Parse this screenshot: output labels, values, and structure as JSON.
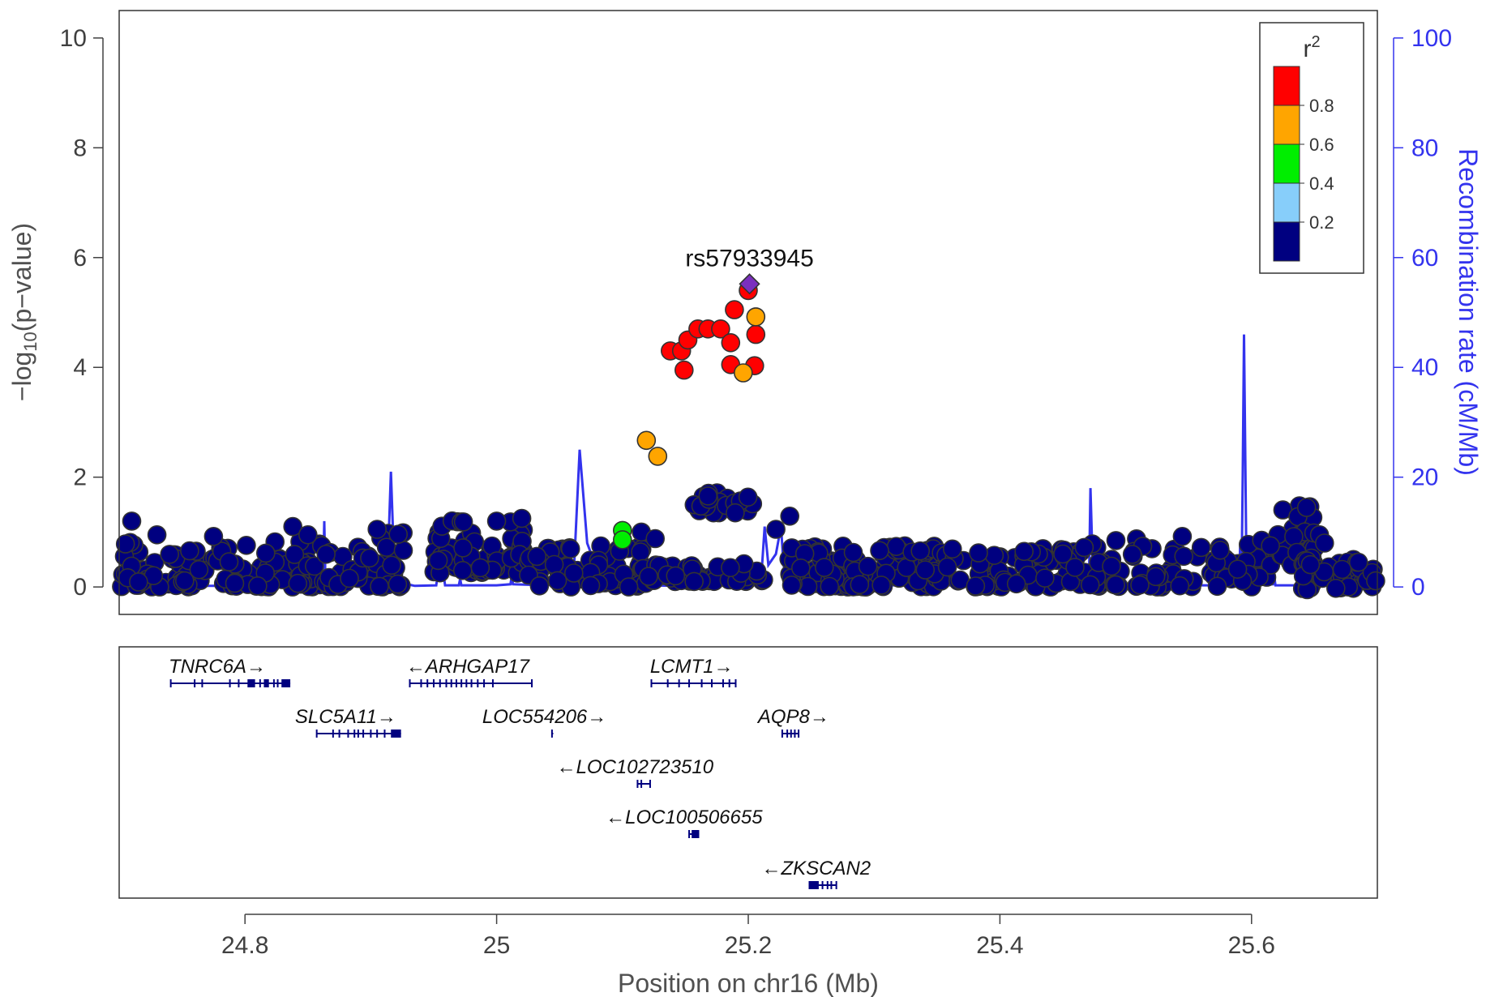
{
  "chart_data": {
    "type": "scatter",
    "title": "",
    "xlabel": "Position on chr16 (Mb)",
    "ylabel_left": "−log10(p−value)",
    "ylabel_left_parts": [
      "−log",
      "10",
      "(p−value)"
    ],
    "ylabel_right": "Recombination rate (cM/Mb)",
    "xlim": [
      24.7,
      25.7
    ],
    "xticks": [
      24.8,
      25.0,
      25.2,
      25.4,
      25.6
    ],
    "xtick_labels": [
      "24.8",
      "25",
      "25.2",
      "25.4",
      "25.6"
    ],
    "ylim_left": [
      -0.5,
      10.5
    ],
    "yticks_left": [
      0,
      2,
      4,
      6,
      8,
      10
    ],
    "ytick_labels_left": [
      "0",
      "2",
      "4",
      "6",
      "8",
      "10"
    ],
    "ylim_right": [
      -5,
      105
    ],
    "yticks_right": [
      0,
      20,
      40,
      60,
      80,
      100
    ],
    "ytick_labels_right": [
      "0",
      "20",
      "40",
      "60",
      "80",
      "100"
    ],
    "lead_snp": {
      "label": "rs57933945",
      "x": 25.201,
      "y": 5.52,
      "color": "#7b2fbe"
    },
    "legend": {
      "title": "r²",
      "title_parts": [
        "r",
        "2"
      ],
      "placement": "top-right",
      "bins": [
        {
          "color": "#ff0000"
        },
        {
          "color": "#ffa500"
        },
        {
          "color": "#00ee00"
        },
        {
          "color": "#87cefa"
        },
        {
          "color": "#000080"
        }
      ],
      "labels": [
        "0.8",
        "0.6",
        "0.4",
        "0.2"
      ]
    },
    "colors": {
      "red": "#ff0000",
      "orange": "#ffa500",
      "green": "#00ee00",
      "lightblue": "#87cefa",
      "navy": "#000080",
      "recomb_line": "#3333ee",
      "point_outline": "#333333",
      "gene": "#00007f"
    },
    "highlighted_points": [
      {
        "x": 25.138,
        "y": 4.3,
        "r2": "red"
      },
      {
        "x": 25.147,
        "y": 4.3,
        "r2": "red"
      },
      {
        "x": 25.149,
        "y": 3.95,
        "r2": "red"
      },
      {
        "x": 25.152,
        "y": 4.5,
        "r2": "red"
      },
      {
        "x": 25.16,
        "y": 4.7,
        "r2": "red"
      },
      {
        "x": 25.168,
        "y": 4.7,
        "r2": "red"
      },
      {
        "x": 25.178,
        "y": 4.7,
        "r2": "red"
      },
      {
        "x": 25.186,
        "y": 4.45,
        "r2": "red"
      },
      {
        "x": 25.186,
        "y": 4.05,
        "r2": "red"
      },
      {
        "x": 25.189,
        "y": 5.05,
        "r2": "red"
      },
      {
        "x": 25.2,
        "y": 5.4,
        "r2": "red"
      },
      {
        "x": 25.206,
        "y": 4.6,
        "r2": "red"
      },
      {
        "x": 25.205,
        "y": 4.03,
        "r2": "red"
      },
      {
        "x": 25.206,
        "y": 4.92,
        "r2": "orange"
      },
      {
        "x": 25.196,
        "y": 3.9,
        "r2": "orange"
      },
      {
        "x": 25.119,
        "y": 2.67,
        "r2": "orange"
      },
      {
        "x": 25.128,
        "y": 2.38,
        "r2": "orange"
      },
      {
        "x": 25.1,
        "y": 1.03,
        "r2": "green"
      },
      {
        "x": 25.1,
        "y": 0.86,
        "r2": "green"
      }
    ],
    "background_clusters": [
      {
        "x": [
          24.7,
          24.862
        ],
        "y": [
          0.0,
          0.85
        ],
        "n": 130
      },
      {
        "x": [
          24.862,
          24.93
        ],
        "y": [
          0.0,
          1.0
        ],
        "n": 45
      },
      {
        "x": [
          24.95,
          25.022
        ],
        "y": [
          0.25,
          1.25
        ],
        "n": 75
      },
      {
        "x": [
          25.025,
          25.12
        ],
        "y": [
          0.0,
          0.8
        ],
        "n": 75
      },
      {
        "x": [
          25.12,
          25.215
        ],
        "y": [
          0.1,
          0.45
        ],
        "n": 55
      },
      {
        "x": [
          25.15,
          25.205
        ],
        "y": [
          1.35,
          1.75
        ],
        "n": 24
      },
      {
        "x": [
          25.232,
          25.355
        ],
        "y": [
          0.0,
          0.75
        ],
        "n": 140
      },
      {
        "x": [
          25.355,
          25.47
        ],
        "y": [
          0.0,
          0.7
        ],
        "n": 80
      },
      {
        "x": [
          25.47,
          25.62
        ],
        "y": [
          0.0,
          0.9
        ],
        "n": 80
      },
      {
        "x": [
          25.62,
          25.65
        ],
        "y": [
          0.4,
          1.55
        ],
        "n": 30
      },
      {
        "x": [
          25.64,
          25.7
        ],
        "y": [
          -0.05,
          0.5
        ],
        "n": 40
      }
    ],
    "background_extra": [
      {
        "x": 24.71,
        "y": 1.2
      },
      {
        "x": 24.73,
        "y": 0.95
      },
      {
        "x": 24.775,
        "y": 0.92
      },
      {
        "x": 24.838,
        "y": 1.1
      },
      {
        "x": 24.85,
        "y": 0.95
      },
      {
        "x": 24.905,
        "y": 1.05
      },
      {
        "x": 25.0,
        "y": 1.2
      },
      {
        "x": 25.02,
        "y": 1.25
      },
      {
        "x": 25.115,
        "y": 1.0
      },
      {
        "x": 25.126,
        "y": 0.88
      },
      {
        "x": 25.222,
        "y": 1.05
      },
      {
        "x": 25.233,
        "y": 1.29
      },
      {
        "x": 24.973,
        "y": 0.3
      },
      {
        "x": 24.987,
        "y": 0.35
      },
      {
        "x": 25.034,
        "y": 0.02
      },
      {
        "x": 25.105,
        "y": 0.0
      },
      {
        "x": 25.45,
        "y": 0.6
      },
      {
        "x": 25.467,
        "y": 0.72
      },
      {
        "x": 25.545,
        "y": 0.92
      },
      {
        "x": 25.56,
        "y": 0.72
      },
      {
        "x": 25.575,
        "y": 0.67
      },
      {
        "x": 25.654,
        "y": 0.95
      },
      {
        "x": 25.658,
        "y": 0.8
      },
      {
        "x": 25.608,
        "y": 0.85
      },
      {
        "x": 25.615,
        "y": 0.75
      },
      {
        "x": 25.685,
        "y": 0.45
      },
      {
        "x": 25.672,
        "y": 0.32
      }
    ],
    "recombination_rate": [
      [
        24.7,
        0.2
      ],
      [
        24.86,
        0.2
      ],
      [
        24.862,
        0.5
      ],
      [
        24.863,
        12
      ],
      [
        24.864,
        0.5
      ],
      [
        24.9,
        0.3
      ],
      [
        24.913,
        1
      ],
      [
        24.916,
        21
      ],
      [
        24.919,
        1
      ],
      [
        24.935,
        0.2
      ],
      [
        24.952,
        0.3
      ],
      [
        24.953,
        2
      ],
      [
        24.958,
        2
      ],
      [
        24.959,
        0.3
      ],
      [
        24.97,
        0.3
      ],
      [
        24.971,
        1.5
      ],
      [
        24.972,
        0.3
      ],
      [
        25.0,
        0.3
      ],
      [
        25.011,
        0.5
      ],
      [
        25.012,
        2
      ],
      [
        25.013,
        0.5
      ],
      [
        25.04,
        0.3
      ],
      [
        25.061,
        1
      ],
      [
        25.066,
        25
      ],
      [
        25.072,
        8
      ],
      [
        25.08,
        3
      ],
      [
        25.09,
        2
      ],
      [
        25.1,
        1.5
      ],
      [
        25.11,
        0.3
      ],
      [
        25.15,
        0.2
      ],
      [
        25.21,
        0.5
      ],
      [
        25.213,
        11
      ],
      [
        25.216,
        4
      ],
      [
        25.222,
        6
      ],
      [
        25.226,
        11
      ],
      [
        25.228,
        4
      ],
      [
        25.232,
        0.3
      ],
      [
        25.47,
        0.3
      ],
      [
        25.471,
        4
      ],
      [
        25.472,
        18
      ],
      [
        25.474,
        2
      ],
      [
        25.476,
        0.3
      ],
      [
        25.59,
        0.3
      ],
      [
        25.591,
        8
      ],
      [
        25.592,
        0.5
      ],
      [
        25.593,
        20
      ],
      [
        25.594,
        46
      ],
      [
        25.596,
        2
      ],
      [
        25.6,
        0.3
      ],
      [
        25.617,
        0.5
      ],
      [
        25.618,
        2
      ],
      [
        25.619,
        0.3
      ],
      [
        25.65,
        0.3
      ],
      [
        25.651,
        1
      ],
      [
        25.652,
        0.3
      ],
      [
        25.7,
        0.3
      ]
    ],
    "genes": [
      {
        "label": "TNRC6A→",
        "row": 0,
        "start": 24.741,
        "end": 24.836,
        "label_x": 24.778,
        "thick": [
          [
            24.802,
            24.808
          ],
          [
            24.815,
            24.819
          ],
          [
            24.829,
            24.836
          ]
        ],
        "exons": [
          24.741,
          24.76,
          24.766,
          24.788,
          24.795,
          24.812,
          24.823,
          24.826
        ]
      },
      {
        "label": "←ARHGAP17",
        "row": 0,
        "start": 24.931,
        "end": 25.028,
        "label_x": 24.977,
        "thick": [],
        "exons": [
          24.931,
          24.94,
          24.945,
          24.95,
          24.955,
          24.96,
          24.964,
          24.968,
          24.972,
          24.976,
          24.98,
          24.985,
          24.99,
          24.997,
          25.028
        ]
      },
      {
        "label": "LCMT1→",
        "row": 0,
        "start": 25.123,
        "end": 25.19,
        "label_x": 25.155,
        "thick": [],
        "exons": [
          25.123,
          25.136,
          25.145,
          25.153,
          25.163,
          25.171,
          25.18,
          25.185,
          25.19
        ]
      },
      {
        "label": "SLC5A11→",
        "row": 1,
        "start": 24.857,
        "end": 24.924,
        "label_x": 24.88,
        "thick": [
          [
            24.916,
            24.924
          ]
        ],
        "exons": [
          24.857,
          24.87,
          24.875,
          24.882,
          24.887,
          24.89,
          24.894,
          24.9,
          24.905,
          24.911
        ]
      },
      {
        "label": "LOC554206→",
        "row": 1,
        "start": 25.044,
        "end": 25.045,
        "label_x": 25.038,
        "thick": [],
        "exons": [
          25.044
        ]
      },
      {
        "label": "AQP8→",
        "row": 1,
        "start": 25.227,
        "end": 25.24,
        "label_x": 25.236,
        "thick": [],
        "exons": [
          25.227,
          25.231,
          25.234,
          25.237,
          25.24
        ]
      },
      {
        "label": "←LOC102723510",
        "row": 2,
        "start": 25.112,
        "end": 25.122,
        "label_x": 25.11,
        "thick": [],
        "exons": [
          25.112,
          25.115,
          25.122
        ]
      },
      {
        "label": "←LOC100506655",
        "row": 3,
        "start": 25.153,
        "end": 25.161,
        "label_x": 25.149,
        "thick": [
          [
            25.155,
            25.161
          ]
        ],
        "exons": [
          25.153
        ]
      },
      {
        "label": "←ZKSCAN2",
        "row": 4,
        "start": 25.248,
        "end": 25.27,
        "label_x": 25.254,
        "thick": [
          [
            25.248,
            25.256
          ]
        ],
        "exons": [
          25.259,
          25.263,
          25.266,
          25.27
        ]
      }
    ]
  }
}
